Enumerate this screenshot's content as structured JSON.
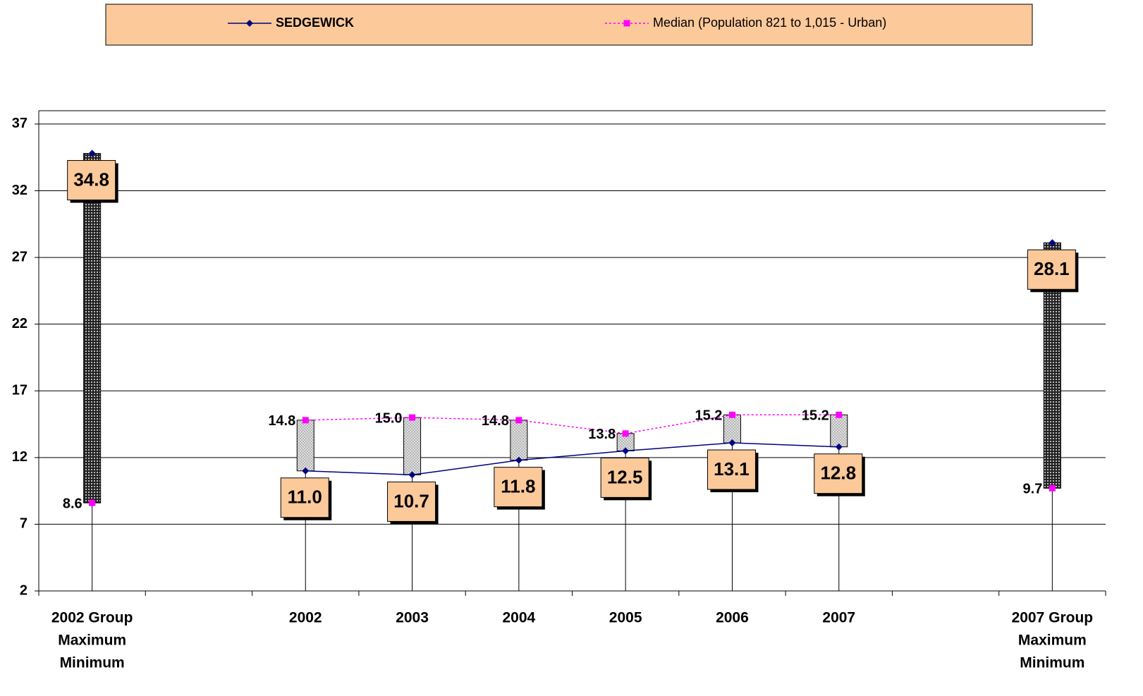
{
  "chart_data": {
    "type": "line",
    "categories": [
      [
        "2002 Group",
        "Maximum",
        "Minimum"
      ],
      null,
      "2002",
      "2003",
      "2004",
      "2005",
      "2006",
      "2007",
      null,
      [
        "2007 Group",
        "Maximum",
        "Minimum"
      ]
    ],
    "series": [
      {
        "name": "SEDGEWICK",
        "color": "#000080",
        "values": [
          34.8,
          null,
          11.0,
          10.7,
          11.8,
          12.5,
          13.1,
          12.8,
          null,
          28.1
        ],
        "value_labels": [
          "34.8",
          null,
          "11.0",
          "10.7",
          "11.8",
          "12.5",
          "13.1",
          "12.8",
          null,
          "28.1"
        ]
      },
      {
        "name": "Median (Population 821 to 1,015 - Urban)",
        "color": "#ff00ff",
        "values": [
          8.6,
          null,
          14.8,
          15.0,
          14.8,
          13.8,
          15.2,
          15.2,
          null,
          9.7
        ],
        "value_labels": [
          "8.6",
          null,
          "14.8",
          "15.0",
          "14.8",
          "13.8",
          "15.2",
          "15.2",
          null,
          "9.7"
        ]
      }
    ],
    "ylim": [
      2,
      38
    ],
    "yticks": [
      2,
      7,
      12,
      17,
      22,
      27,
      32,
      37
    ],
    "grid": true,
    "hilo_bars": true,
    "drop_lines": true,
    "legend": "top"
  }
}
